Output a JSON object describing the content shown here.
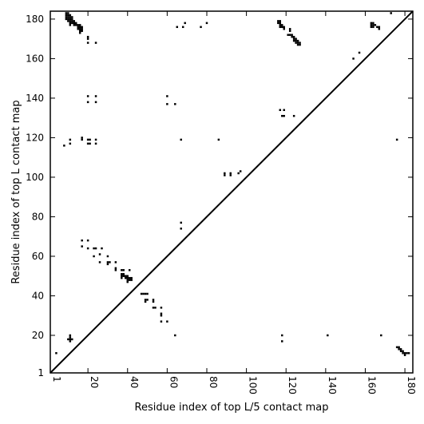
{
  "chart_data": {
    "type": "scatter",
    "title": "",
    "xlabel": "Residue index of top L/5 contact map",
    "ylabel": "Residue index of top L contact map",
    "xlim": [
      1,
      184
    ],
    "ylim": [
      1,
      184
    ],
    "x_ticks": [
      1,
      20,
      40,
      60,
      80,
      100,
      120,
      140,
      160,
      180
    ],
    "y_ticks": [
      1,
      20,
      40,
      60,
      80,
      100,
      120,
      140,
      160,
      180
    ],
    "diagonal": true,
    "grid": false,
    "color": "#000000",
    "points": [
      [
        9,
        183
      ],
      [
        10,
        183
      ],
      [
        9,
        182
      ],
      [
        10,
        182
      ],
      [
        11,
        182
      ],
      [
        9,
        181
      ],
      [
        10,
        181
      ],
      [
        11,
        181
      ],
      [
        12,
        181
      ],
      [
        9,
        180
      ],
      [
        10,
        180
      ],
      [
        11,
        180
      ],
      [
        12,
        180
      ],
      [
        10,
        179
      ],
      [
        11,
        179
      ],
      [
        12,
        179
      ],
      [
        13,
        179
      ],
      [
        11,
        178
      ],
      [
        12,
        178
      ],
      [
        13,
        178
      ],
      [
        14,
        178
      ],
      [
        11,
        177
      ],
      [
        13,
        177
      ],
      [
        14,
        177
      ],
      [
        15,
        177
      ],
      [
        16,
        177
      ],
      [
        15,
        176
      ],
      [
        16,
        176
      ],
      [
        17,
        176
      ],
      [
        15,
        175
      ],
      [
        16,
        175
      ],
      [
        17,
        175
      ],
      [
        16,
        174
      ],
      [
        17,
        174
      ],
      [
        16,
        173
      ],
      [
        20,
        171
      ],
      [
        20,
        170
      ],
      [
        20,
        168
      ],
      [
        24,
        168
      ],
      [
        20,
        141
      ],
      [
        24,
        141
      ],
      [
        20,
        138
      ],
      [
        24,
        138
      ],
      [
        60,
        141
      ],
      [
        60,
        137
      ],
      [
        64,
        137
      ],
      [
        65,
        176
      ],
      [
        68,
        176
      ],
      [
        69,
        178
      ],
      [
        77,
        176
      ],
      [
        80,
        178
      ],
      [
        8,
        116
      ],
      [
        11,
        119
      ],
      [
        11,
        117
      ],
      [
        17,
        120
      ],
      [
        17,
        119
      ],
      [
        20,
        119
      ],
      [
        21,
        119
      ],
      [
        24,
        119
      ],
      [
        20,
        117
      ],
      [
        21,
        117
      ],
      [
        24,
        117
      ],
      [
        67,
        119
      ],
      [
        86,
        119
      ],
      [
        89,
        102
      ],
      [
        92,
        102
      ],
      [
        89,
        101
      ],
      [
        92,
        101
      ],
      [
        96,
        102
      ],
      [
        97,
        103
      ],
      [
        116,
        179
      ],
      [
        117,
        179
      ],
      [
        116,
        178
      ],
      [
        117,
        178
      ],
      [
        117,
        177
      ],
      [
        117,
        176
      ],
      [
        118,
        177
      ],
      [
        118,
        176
      ],
      [
        119,
        176
      ],
      [
        119,
        175
      ],
      [
        122,
        175
      ],
      [
        122,
        174
      ],
      [
        121,
        172
      ],
      [
        122,
        172
      ],
      [
        123,
        172
      ],
      [
        123,
        171
      ],
      [
        124,
        171
      ],
      [
        124,
        170
      ],
      [
        125,
        170
      ],
      [
        124,
        169
      ],
      [
        125,
        169
      ],
      [
        126,
        169
      ],
      [
        125,
        168
      ],
      [
        126,
        168
      ],
      [
        127,
        168
      ],
      [
        126,
        167
      ],
      [
        127,
        167
      ],
      [
        117,
        134
      ],
      [
        119,
        134
      ],
      [
        118,
        131
      ],
      [
        119,
        131
      ],
      [
        124,
        131
      ],
      [
        154,
        160
      ],
      [
        157,
        163
      ],
      [
        163,
        178
      ],
      [
        164,
        178
      ],
      [
        163,
        177
      ],
      [
        164,
        177
      ],
      [
        165,
        177
      ],
      [
        163,
        176
      ],
      [
        164,
        176
      ],
      [
        166,
        176
      ],
      [
        167,
        176
      ],
      [
        167,
        175
      ],
      [
        173,
        183
      ],
      [
        17,
        68
      ],
      [
        20,
        68
      ],
      [
        17,
        65
      ],
      [
        20,
        64
      ],
      [
        23,
        64
      ],
      [
        24,
        64
      ],
      [
        27,
        64
      ],
      [
        23,
        60
      ],
      [
        26,
        61
      ],
      [
        30,
        60
      ],
      [
        26,
        57
      ],
      [
        30,
        57
      ],
      [
        31,
        57
      ],
      [
        30,
        56
      ],
      [
        34,
        57
      ],
      [
        34,
        54
      ],
      [
        34,
        53
      ],
      [
        37,
        53
      ],
      [
        38,
        53
      ],
      [
        41,
        53
      ],
      [
        37,
        51
      ],
      [
        38,
        51
      ],
      [
        37,
        50
      ],
      [
        38,
        50
      ],
      [
        39,
        50
      ],
      [
        40,
        50
      ],
      [
        37,
        49
      ],
      [
        39,
        49
      ],
      [
        40,
        49
      ],
      [
        41,
        49
      ],
      [
        42,
        49
      ],
      [
        40,
        48
      ],
      [
        41,
        48
      ],
      [
        42,
        48
      ],
      [
        40,
        47
      ],
      [
        47,
        41
      ],
      [
        48,
        41
      ],
      [
        49,
        41
      ],
      [
        50,
        41
      ],
      [
        49,
        38
      ],
      [
        50,
        38
      ],
      [
        53,
        38
      ],
      [
        49,
        37
      ],
      [
        53,
        37
      ],
      [
        53,
        34
      ],
      [
        54,
        34
      ],
      [
        57,
        34
      ],
      [
        57,
        31
      ],
      [
        57,
        30
      ],
      [
        57,
        27
      ],
      [
        60,
        27
      ],
      [
        64,
        20
      ],
      [
        67,
        77
      ],
      [
        67,
        74
      ],
      [
        11,
        20
      ],
      [
        11,
        19
      ],
      [
        11,
        18
      ],
      [
        10,
        18
      ],
      [
        12,
        18
      ],
      [
        11,
        17
      ],
      [
        4,
        11
      ],
      [
        118,
        20
      ],
      [
        118,
        17
      ],
      [
        141,
        20
      ],
      [
        168,
        20
      ],
      [
        176,
        119
      ],
      [
        176,
        14
      ],
      [
        177,
        14
      ],
      [
        177,
        13
      ],
      [
        178,
        13
      ],
      [
        178,
        12
      ],
      [
        179,
        12
      ],
      [
        180,
        11
      ],
      [
        179,
        11
      ],
      [
        181,
        11
      ],
      [
        182,
        11
      ],
      [
        180,
        10
      ]
    ]
  }
}
